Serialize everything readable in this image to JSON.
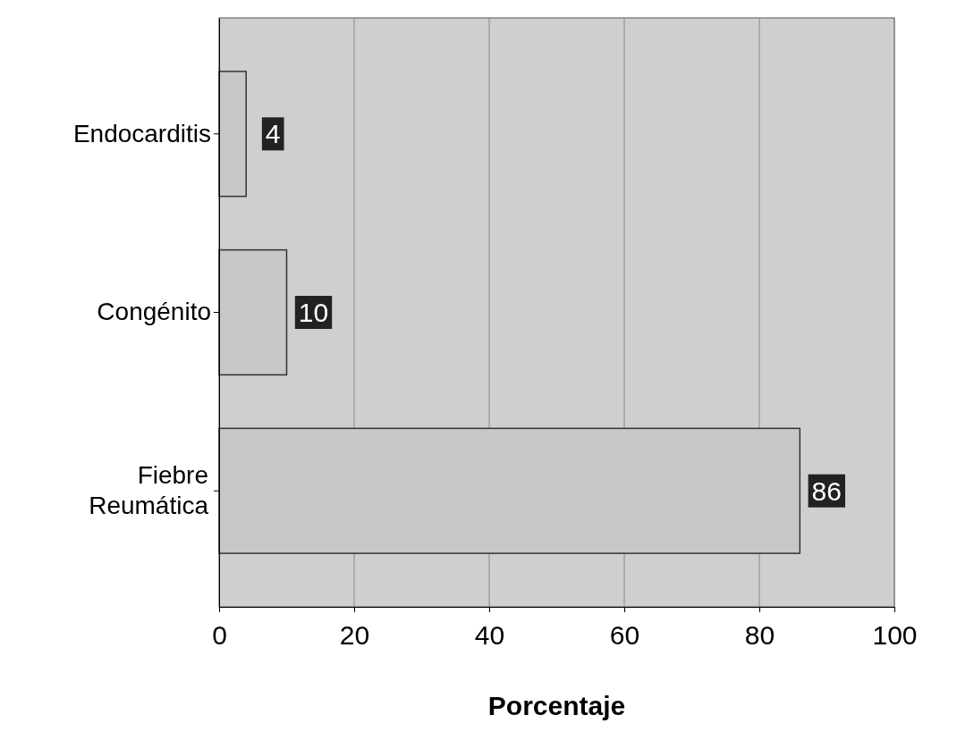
{
  "chart_data": {
    "type": "bar",
    "orientation": "horizontal",
    "categories": [
      "Endocarditis",
      "Congénito",
      "Fiebre Reumática"
    ],
    "values": [
      4,
      10,
      86
    ],
    "color": "#c8c8c8",
    "xlim": [
      0,
      100
    ],
    "xticks": [
      0,
      20,
      40,
      60,
      80,
      100
    ],
    "xlabel": "Porcentaje",
    "grid": "x",
    "data_labels": true
  }
}
